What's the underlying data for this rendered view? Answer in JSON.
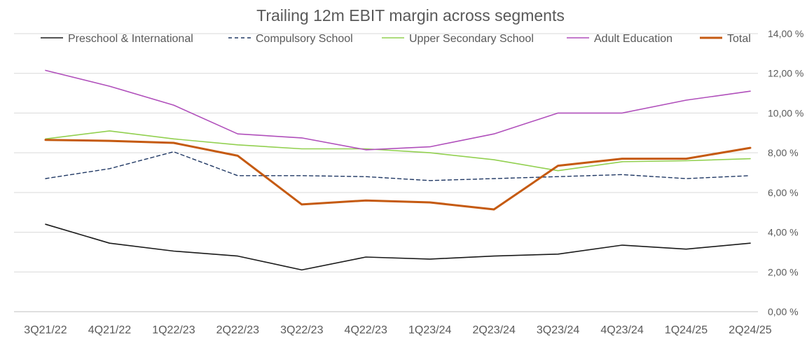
{
  "chart_data": {
    "type": "line",
    "title": "Trailing 12m EBIT margin across segments",
    "xlabel": "",
    "ylabel": "",
    "categories": [
      "3Q21/22",
      "4Q21/22",
      "1Q22/23",
      "2Q22/23",
      "3Q22/23",
      "4Q22/23",
      "1Q23/24",
      "2Q23/24",
      "3Q23/24",
      "4Q23/24",
      "1Q24/25",
      "2Q24/25"
    ],
    "ylim": [
      0,
      14
    ],
    "yticks": [
      0,
      2,
      4,
      6,
      8,
      10,
      12,
      14
    ],
    "ytick_labels": [
      "0,00 %",
      "2,00 %",
      "4,00 %",
      "6,00 %",
      "8,00 %",
      "10,00 %",
      "12,00 %",
      "14,00 %"
    ],
    "y_axis_side": "right",
    "grid": true,
    "legend_position": "top",
    "series": [
      {
        "name": "Preschool & International",
        "color": "#1a1a1a",
        "style": "solid",
        "values": [
          4.4,
          3.45,
          3.05,
          2.8,
          2.1,
          2.75,
          2.65,
          2.8,
          2.9,
          3.35,
          3.15,
          3.45
        ]
      },
      {
        "name": "Compulsory School",
        "color": "#203864",
        "style": "dashed",
        "values": [
          6.7,
          7.2,
          8.05,
          6.85,
          6.85,
          6.8,
          6.6,
          6.7,
          6.8,
          6.9,
          6.7,
          6.85
        ]
      },
      {
        "name": "Upper Secondary School",
        "color": "#92d050",
        "style": "solid",
        "values": [
          8.7,
          9.1,
          8.7,
          8.4,
          8.2,
          8.2,
          8.0,
          7.65,
          7.1,
          7.55,
          7.6,
          7.7
        ]
      },
      {
        "name": "Adult Education",
        "color": "#b04fbb",
        "style": "solid",
        "values": [
          12.15,
          11.35,
          10.4,
          8.95,
          8.75,
          8.15,
          8.3,
          8.95,
          10.0,
          10.0,
          10.65,
          11.1
        ]
      },
      {
        "name": "Total",
        "color": "#c55a11",
        "style": "thick",
        "values": [
          8.65,
          8.6,
          8.5,
          7.85,
          5.4,
          5.6,
          5.5,
          5.15,
          7.35,
          7.7,
          7.7,
          8.25
        ]
      }
    ]
  }
}
